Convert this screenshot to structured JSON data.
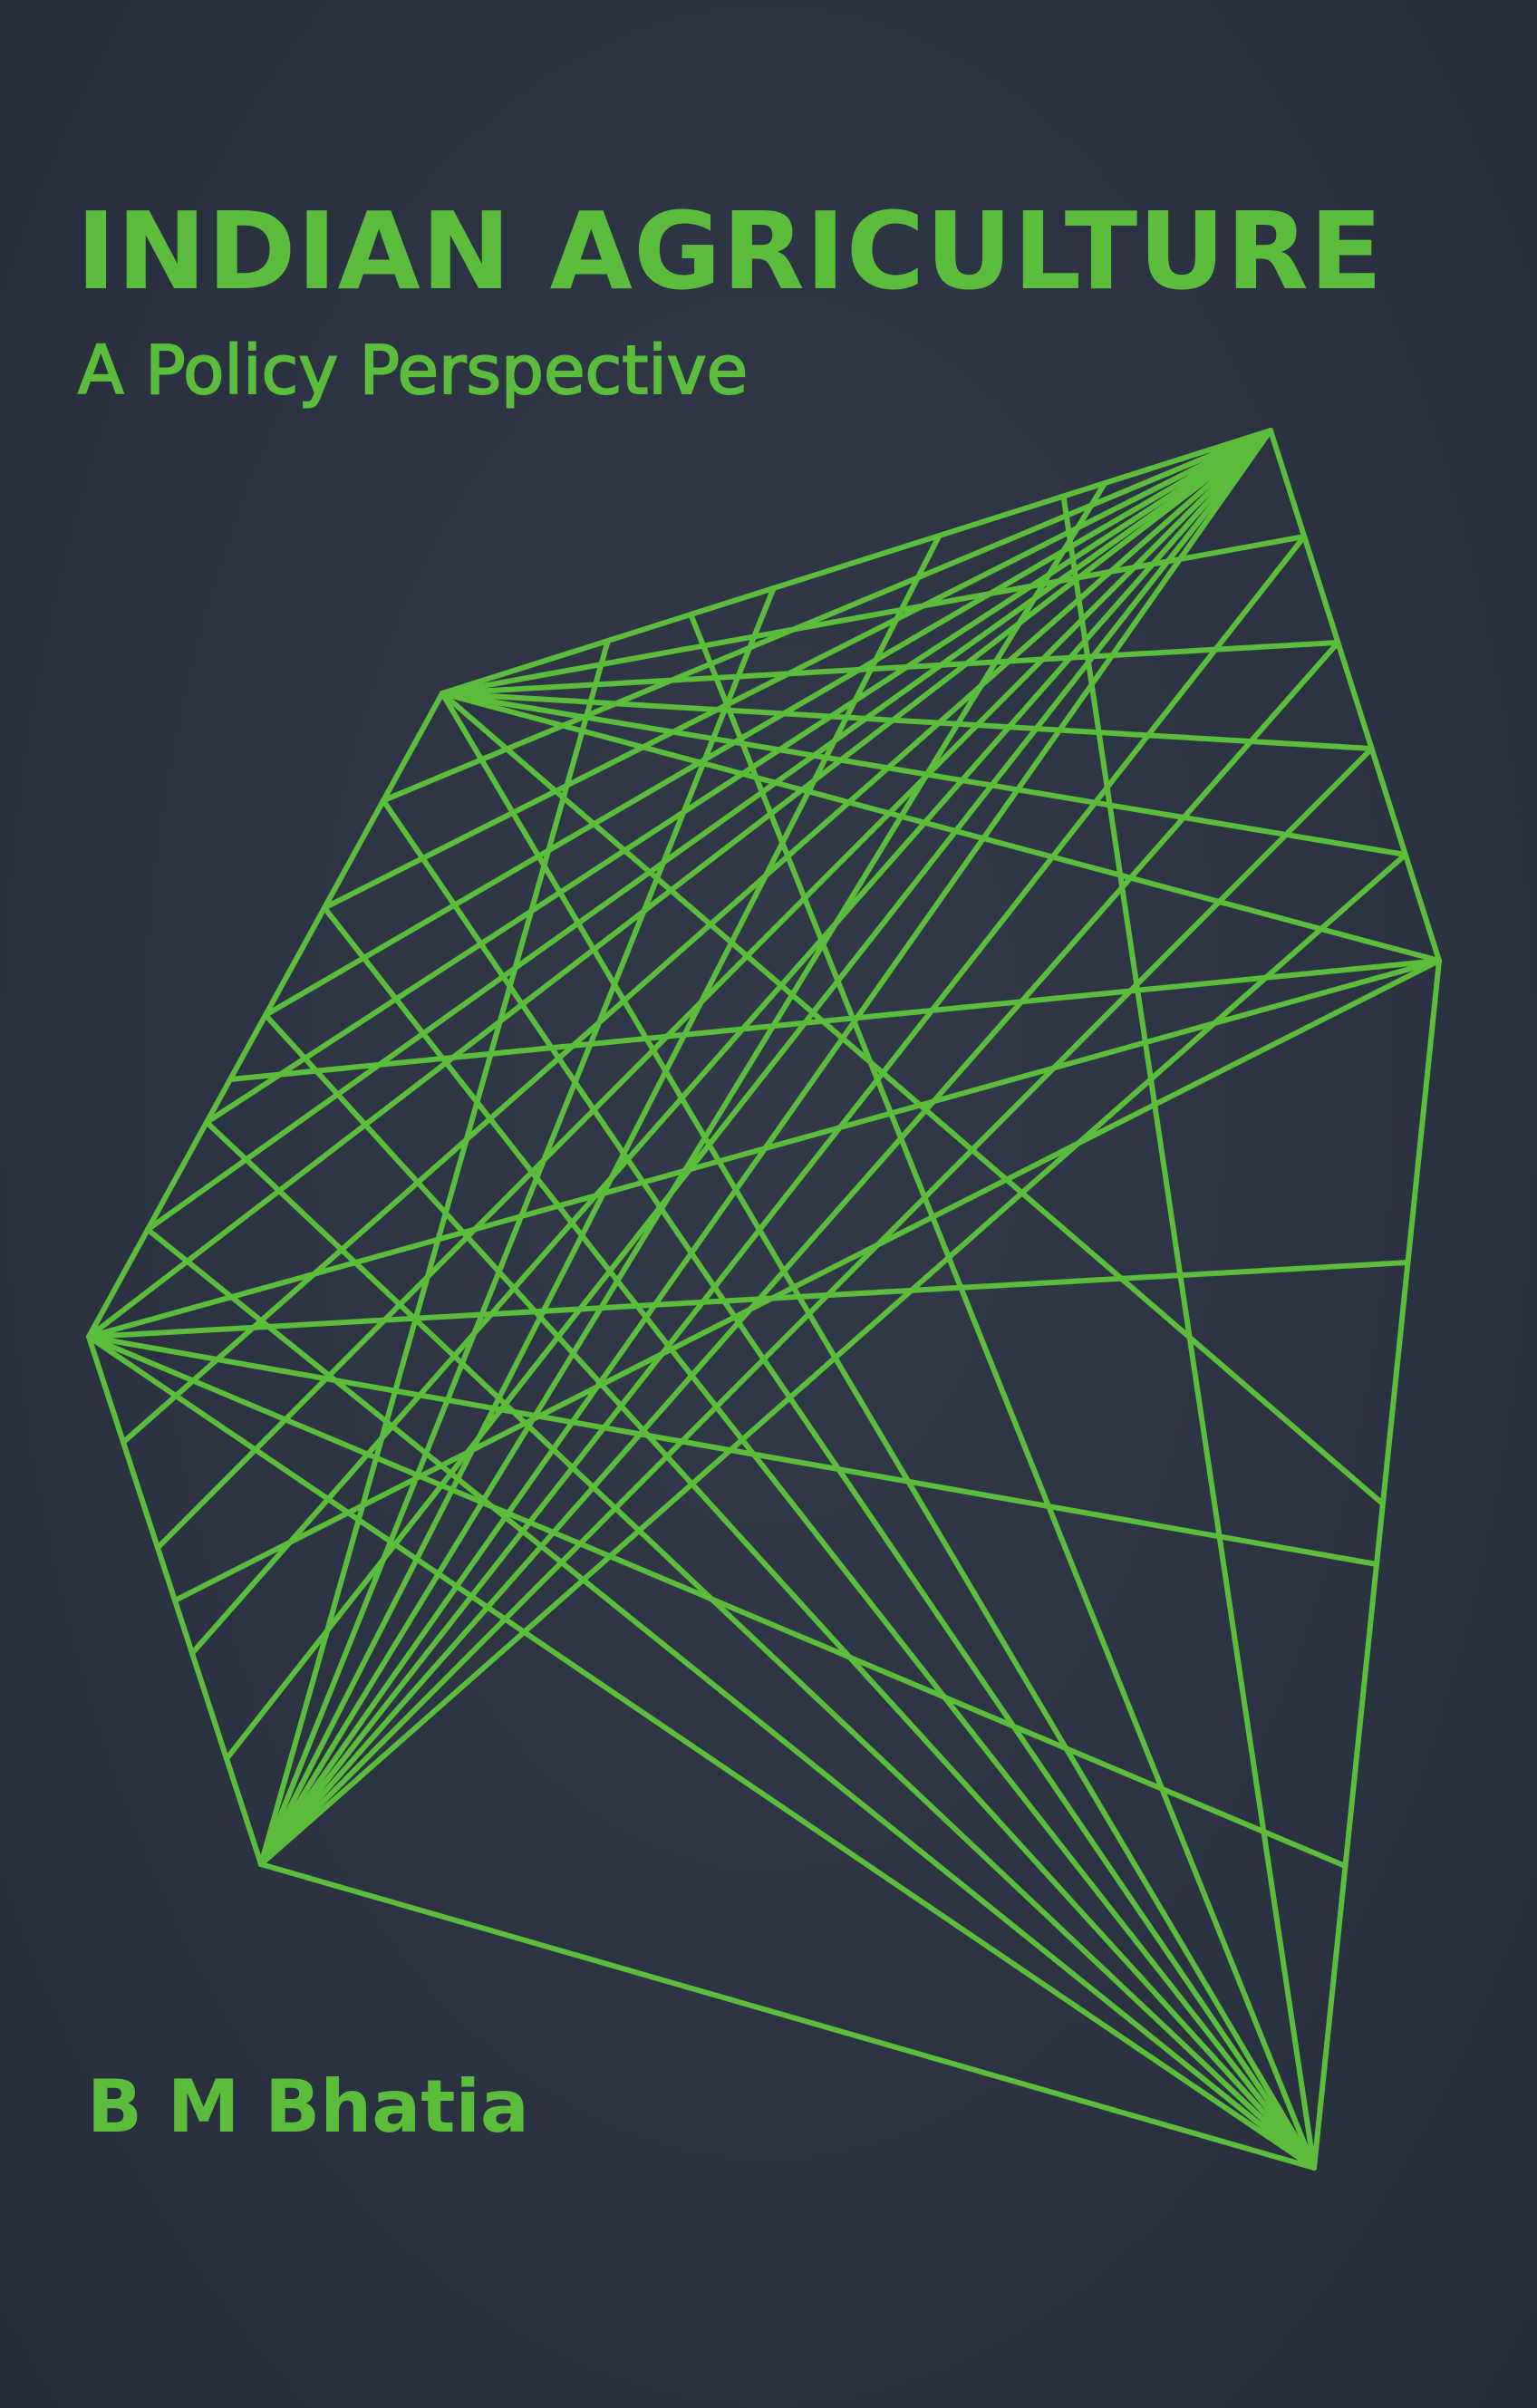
{
  "cover": {
    "title": "INDIAN AGRICULTURE",
    "subtitle": "A Policy Perspective",
    "author": "B M Bhatia"
  },
  "colors": {
    "background": "#2c3342",
    "accent": "#5cbc3c"
  },
  "illustration": {
    "icon": "geometric-line-network-icon"
  }
}
